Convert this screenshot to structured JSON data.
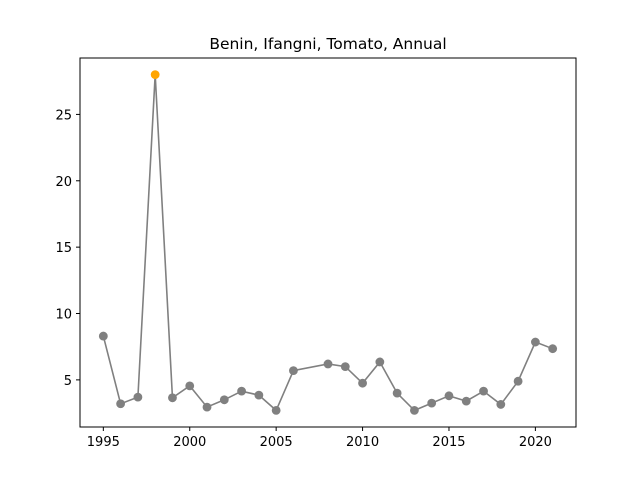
{
  "chart_data": {
    "type": "line",
    "title": "Benin, Ifangni, Tomato, Annual",
    "xlabel": "",
    "ylabel": "",
    "xlim": [
      1993.65,
      2022.35
    ],
    "ylim": [
      1.45,
      29.25
    ],
    "x_ticks": [
      1995,
      2000,
      2005,
      2010,
      2015,
      2020
    ],
    "y_ticks": [
      5,
      10,
      15,
      20,
      25
    ],
    "grid": false,
    "line_color": "#808080",
    "point_color": "#808080",
    "highlight_color": "#ffa500",
    "series": [
      {
        "x": [
          1995,
          1996,
          1997,
          1998,
          1999,
          2000,
          2001,
          2002,
          2003,
          2004,
          2005,
          2006,
          2008,
          2009,
          2010,
          2011,
          2012,
          2013,
          2014,
          2015,
          2016,
          2017,
          2018,
          2019,
          2020,
          2021
        ],
        "values": [
          8.3,
          3.2,
          3.7,
          28.0,
          3.65,
          4.55,
          2.95,
          3.5,
          4.15,
          3.85,
          2.7,
          5.7,
          6.2,
          6.0,
          4.75,
          6.35,
          4.0,
          2.7,
          3.25,
          3.8,
          3.4,
          4.15,
          3.15,
          4.9,
          7.85,
          7.35
        ],
        "highlight": [
          1998
        ]
      }
    ]
  }
}
